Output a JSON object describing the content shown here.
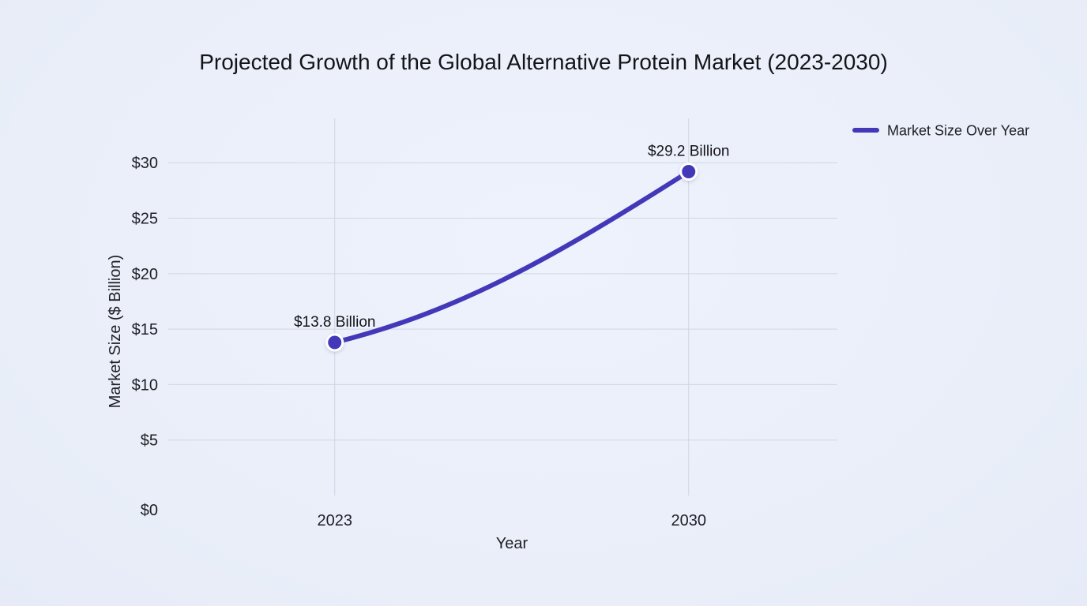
{
  "chart_data": {
    "type": "line",
    "title": "Projected Growth of the Global Alternative Protein Market (2023-2030)",
    "xlabel": "Year",
    "ylabel": "Market Size ($ Billion)",
    "categories": [
      "2023",
      "2030"
    ],
    "series": [
      {
        "name": "Market Size Over Year",
        "values": [
          13.8,
          29.2
        ],
        "data_labels": [
          "$13.8 Billion",
          "$29.2 Billion"
        ],
        "color": "#4338b8"
      }
    ],
    "ylim": [
      0,
      34
    ],
    "yticks": [
      0,
      5,
      10,
      15,
      20,
      25,
      30
    ],
    "ytick_labels": [
      "$0",
      "$5",
      "$10",
      "$15",
      "$20",
      "$25",
      "$30"
    ],
    "grid": true,
    "legend_position": "top-right"
  }
}
